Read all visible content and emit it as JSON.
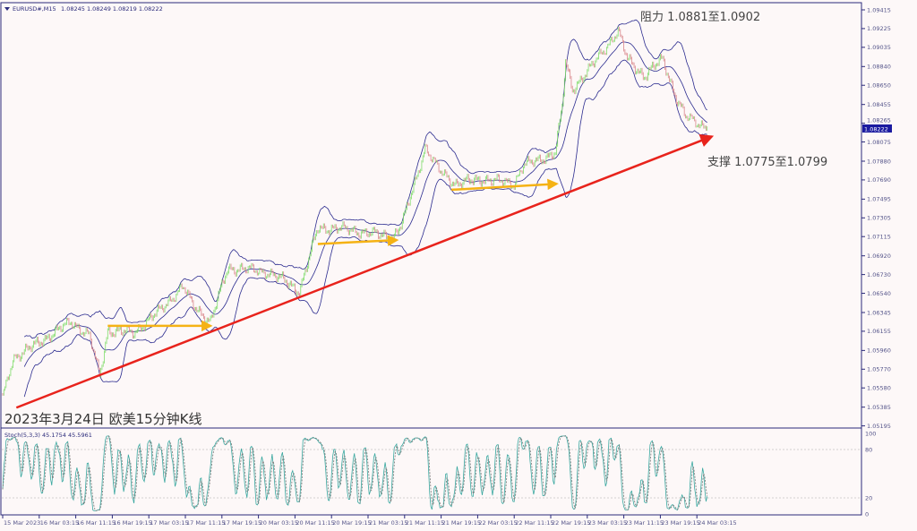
{
  "header": {
    "symbol": "EURUSD#,M15",
    "ohlc": "1.08245 1.08249 1.08219 1.08222"
  },
  "current_price": "1.08222",
  "stoch_header": "Stoch(5,3,3) 45.1754 45.5961",
  "annotations": {
    "resistance": "阻力 1.0881至1.0902",
    "support": "支撑 1.0775至1.0799",
    "caption": "2023年3月24日 欧美15分钟K线"
  },
  "colors": {
    "background": "#fdf8f8",
    "bull_candle": "#7fdc6a",
    "bear_candle": "#d9868a",
    "bollinger": "#2b2b8f",
    "trendline": "#e8231c",
    "range_arrow": "#f5b214",
    "stoch_main": "#3aa8a0",
    "stoch_signal": "#777777",
    "axis": "#2a2a7a"
  },
  "chart_data": {
    "type": "candlestick",
    "timeframe": "M15",
    "indicators": [
      "Bollinger Bands",
      "Stochastic(5,3,3)"
    ],
    "y_ticks": [
      "1.09415",
      "1.09225",
      "1.09035",
      "1.08840",
      "1.08650",
      "1.08455",
      "1.08265",
      "1.08075",
      "1.07880",
      "1.07690",
      "1.07495",
      "1.07305",
      "1.07115",
      "1.06920",
      "1.06730",
      "1.06540",
      "1.06345",
      "1.06155",
      "1.05960",
      "1.05770",
      "1.05580",
      "1.05385",
      "1.05195"
    ],
    "ylim": [
      1.05195,
      1.09415
    ],
    "x_ticks": [
      "15 Mar 2023",
      "16 Mar 03:15",
      "16 Mar 11:15",
      "16 Mar 19:15",
      "17 Mar 03:15",
      "17 Mar 11:15",
      "17 Mar 19:15",
      "20 Mar 03:15",
      "20 Mar 11:15",
      "20 Mar 19:15",
      "21 Mar 03:15",
      "21 Mar 11:15",
      "21 Mar 19:15",
      "22 Mar 03:15",
      "22 Mar 11:15",
      "22 Mar 19:15",
      "23 Mar 03:15",
      "23 Mar 11:15",
      "23 Mar 19:15",
      "24 Mar 03:15"
    ],
    "stoch_ticks": [
      "100",
      "80",
      "20",
      "0"
    ],
    "close_path": [
      {
        "t": "15 Mar 19:30",
        "p": 1.0552
      },
      {
        "t": "15 Mar 21:30",
        "p": 1.0588
      },
      {
        "t": "16 Mar 02:30",
        "p": 1.0602
      },
      {
        "t": "16 Mar 10:15",
        "p": 1.0625
      },
      {
        "t": "16 Mar 14:15",
        "p": 1.0611
      },
      {
        "t": "16 Mar 16:30",
        "p": 1.057
      },
      {
        "t": "16 Mar 18:15",
        "p": 1.0616
      },
      {
        "t": "17 Mar 00:00",
        "p": 1.0614
      },
      {
        "t": "17 Mar 06:00",
        "p": 1.0638
      },
      {
        "t": "17 Mar 10:45",
        "p": 1.0661
      },
      {
        "t": "17 Mar 12:45",
        "p": 1.0643
      },
      {
        "t": "17 Mar 16:45",
        "p": 1.0625
      },
      {
        "t": "17 Mar 20:30",
        "p": 1.0679
      },
      {
        "t": "17 Mar 23:30",
        "p": 1.0679
      },
      {
        "t": "20 Mar 05:30",
        "p": 1.0675
      },
      {
        "t": "20 Mar 09:15",
        "p": 1.0666
      },
      {
        "t": "20 Mar 12:15",
        "p": 1.0656
      },
      {
        "t": "20 Mar 14:15",
        "p": 1.0688
      },
      {
        "t": "20 Mar 16:15",
        "p": 1.072
      },
      {
        "t": "20 Mar 20:15",
        "p": 1.072
      },
      {
        "t": "21 Mar 01:00",
        "p": 1.0717
      },
      {
        "t": "21 Mar 08:45",
        "p": 1.0711
      },
      {
        "t": "21 Mar 10:45",
        "p": 1.0725
      },
      {
        "t": "21 Mar 13:45",
        "p": 1.077
      },
      {
        "t": "21 Mar 15:45",
        "p": 1.0802
      },
      {
        "t": "21 Mar 18:45",
        "p": 1.0779
      },
      {
        "t": "21 Mar 22:30",
        "p": 1.0765
      },
      {
        "t": "22 Mar 04:30",
        "p": 1.077
      },
      {
        "t": "22 Mar 11:15",
        "p": 1.0765
      },
      {
        "t": "22 Mar 13:15",
        "p": 1.0784
      },
      {
        "t": "22 Mar 16:15",
        "p": 1.0788
      },
      {
        "t": "22 Mar 20:15",
        "p": 1.0797
      },
      {
        "t": "22 Mar 21:45",
        "p": 1.0843
      },
      {
        "t": "22 Mar 22:30",
        "p": 1.0888
      },
      {
        "t": "23 Mar 00:00",
        "p": 1.0861
      },
      {
        "t": "23 Mar 04:00",
        "p": 1.0883
      },
      {
        "t": "23 Mar 10:00",
        "p": 1.092
      },
      {
        "t": "23 Mar 12:00",
        "p": 1.0892
      },
      {
        "t": "23 Mar 15:45",
        "p": 1.0874
      },
      {
        "t": "23 Mar 19:45",
        "p": 1.0892
      },
      {
        "t": "23 Mar 22:45",
        "p": 1.0852
      },
      {
        "t": "24 Mar 00:45",
        "p": 1.0833
      },
      {
        "t": "24 Mar 05:30",
        "p": 1.08222
      }
    ],
    "trendline": {
      "from": {
        "t": "15 Mar 22:15",
        "p": 1.0538
      },
      "to": {
        "t": "24 Mar 06:30",
        "p": 1.0813
      }
    },
    "range_arrows": [
      {
        "from": {
          "t": "16 Mar 18:15",
          "p": 1.0621
        },
        "to": {
          "t": "17 Mar 16:45",
          "p": 1.0621
        }
      },
      {
        "from": {
          "t": "20 Mar 16:15",
          "p": 1.0704
        },
        "to": {
          "t": "21 Mar 09:30",
          "p": 1.0708
        }
      },
      {
        "from": {
          "t": "21 Mar 21:30",
          "p": 1.0759
        },
        "to": {
          "t": "22 Mar 20:30",
          "p": 1.0765
        }
      }
    ]
  }
}
